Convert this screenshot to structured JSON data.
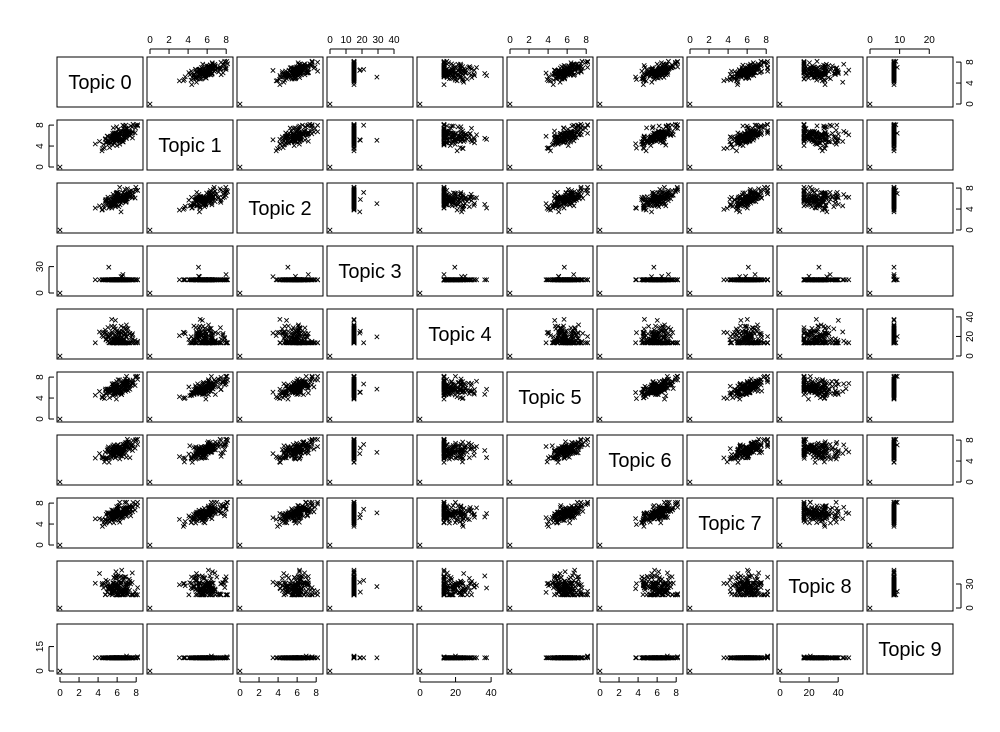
{
  "chart_data": {
    "type": "scatter",
    "layout": "scatter-matrix",
    "marker": "x",
    "color": "#000000",
    "variables": [
      "Topic 0",
      "Topic 1",
      "Topic 2",
      "Topic 3",
      "Topic 4",
      "Topic 5",
      "Topic 6",
      "Topic 7",
      "Topic 8",
      "Topic 9"
    ],
    "ranges": [
      [
        0,
        8.4
      ],
      [
        0,
        8.4
      ],
      [
        0,
        8.4
      ],
      [
        0,
        50
      ],
      [
        0,
        45
      ],
      [
        0,
        8.4
      ],
      [
        0,
        8.4
      ],
      [
        0,
        8.4
      ],
      [
        0,
        55
      ],
      [
        0,
        27
      ]
    ],
    "ticks": [
      [
        0,
        2,
        4,
        6,
        8
      ],
      [
        0,
        4,
        8
      ],
      [
        0,
        4,
        8
      ],
      [
        0,
        10,
        20,
        30,
        40
      ],
      [
        0,
        20,
        40
      ],
      [
        0,
        4,
        8
      ],
      [
        0,
        4,
        8
      ],
      [
        0,
        4,
        8
      ],
      [
        0,
        20,
        40
      ],
      [
        0,
        10,
        20
      ]
    ],
    "top_axis_ticks": [
      [
        0,
        2,
        4,
        6,
        8
      ],
      [
        0,
        2,
        4,
        6,
        8
      ],
      [
        0,
        2,
        4,
        6,
        8
      ],
      [
        0,
        10,
        20,
        30,
        40
      ],
      [
        0,
        2,
        4,
        6,
        8
      ],
      [
        0,
        2,
        4,
        6,
        8
      ],
      [
        0,
        2,
        4,
        6,
        8
      ],
      [
        0,
        2,
        4,
        6,
        8
      ],
      [
        0,
        2,
        4,
        6,
        8
      ],
      [
        0,
        10,
        20
      ]
    ],
    "bottom_axis_ticks": [
      [
        0,
        2,
        4,
        6,
        8
      ],
      [
        0,
        2,
        4,
        6,
        8
      ],
      [
        0,
        2,
        4,
        6,
        8
      ],
      [
        0,
        10,
        20,
        30,
        40
      ],
      [
        0,
        20,
        40
      ],
      [
        0,
        2,
        4,
        6,
        8
      ],
      [
        0,
        2,
        4,
        6,
        8
      ],
      [
        0,
        2,
        4,
        6,
        8
      ],
      [
        0,
        20,
        40
      ],
      [
        0,
        10,
        20
      ]
    ],
    "left_axis_ticks": [
      [
        0,
        2,
        4,
        6,
        8
      ],
      [
        0,
        4,
        8
      ],
      [
        0,
        4,
        8
      ],
      [
        0,
        30
      ],
      [
        0,
        20,
        40
      ],
      [
        0,
        4,
        8
      ],
      [
        0,
        4,
        8
      ],
      [
        0,
        4,
        8
      ],
      [
        0,
        30
      ],
      [
        0,
        15
      ]
    ],
    "right_axis_ticks": [
      [
        0,
        4,
        8
      ],
      [
        0,
        4,
        8
      ],
      [
        0,
        4,
        8
      ],
      [
        0,
        10,
        20,
        30,
        40
      ],
      [
        0,
        20,
        40
      ],
      [
        0,
        4,
        8
      ],
      [
        0,
        4,
        8
      ],
      [
        0,
        4,
        8
      ],
      [
        0,
        30
      ],
      [
        0,
        15
      ]
    ],
    "axis_labels_top": [
      "0",
      "2",
      "4",
      "6",
      "8"
    ],
    "profiles": [
      {
        "center": 6.0,
        "sd": 0.9,
        "kind": "normal"
      },
      {
        "center": 5.8,
        "sd": 1.0,
        "kind": "normal"
      },
      {
        "center": 5.7,
        "sd": 1.0,
        "kind": "normal"
      },
      {
        "center": 6.5,
        "sd": 0.0,
        "kind": "skew",
        "scale": 7,
        "max": 48
      },
      {
        "center": 17,
        "sd": 9,
        "kind": "normal"
      },
      {
        "center": 5.9,
        "sd": 0.9,
        "kind": "normal"
      },
      {
        "center": 6.0,
        "sd": 0.9,
        "kind": "normal"
      },
      {
        "center": 5.9,
        "sd": 0.9,
        "kind": "normal"
      },
      {
        "center": 26,
        "sd": 9,
        "kind": "normal"
      },
      {
        "center": 6.0,
        "sd": 1.0,
        "kind": "normal"
      }
    ],
    "points_per_panel": 140,
    "grid": false,
    "legend": "none",
    "title": ""
  }
}
